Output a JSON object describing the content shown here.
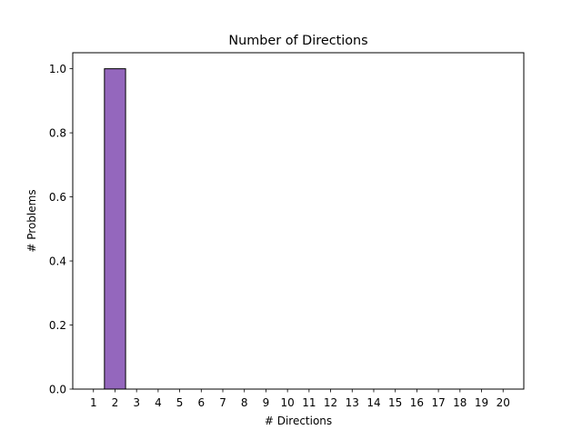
{
  "chart_data": {
    "type": "bar",
    "title": "Number of Directions",
    "xlabel": "# Directions",
    "ylabel": "# Problems",
    "categories": [
      "1",
      "2",
      "3",
      "4",
      "5",
      "6",
      "7",
      "8",
      "9",
      "10",
      "11",
      "12",
      "13",
      "14",
      "15",
      "16",
      "17",
      "18",
      "19",
      "20"
    ],
    "values": [
      0,
      1,
      0,
      0,
      0,
      0,
      0,
      0,
      0,
      0,
      0,
      0,
      0,
      0,
      0,
      0,
      0,
      0,
      0,
      0
    ],
    "ylim": [
      0,
      1.05
    ],
    "yticks": [
      "0.0",
      "0.2",
      "0.4",
      "0.6",
      "0.8",
      "1.0"
    ],
    "bar_color": "#9467bd",
    "edge_color": "#000000",
    "grid": false
  }
}
